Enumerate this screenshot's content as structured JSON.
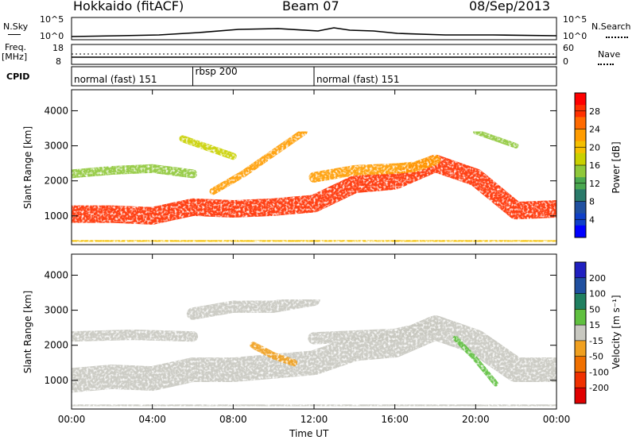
{
  "header": {
    "title_left": "Hokkaido (fitACF)",
    "title_center": "Beam 07",
    "title_right": "08/Sep/2013"
  },
  "strip": {
    "nsky_label": "N.Sky",
    "nsearch_label": "N.Search",
    "freq_label": "Freq.",
    "mhz_label": "[MHz]",
    "nave_label": "Nave",
    "cpid_label": "CPID",
    "nsky_ticks": [
      "10^5",
      "10^0"
    ],
    "nsearch_ticks": [
      "10^5",
      "10^0"
    ],
    "freq_ticks": [
      "18",
      "8"
    ],
    "nave_ticks": [
      "60",
      "0"
    ],
    "cpid_segments": [
      {
        "label": "normal (fast) 151",
        "start": 0,
        "end": 6
      },
      {
        "label": "rbsp 200",
        "start": 6,
        "end": 12
      },
      {
        "label": "normal (fast) 151",
        "start": 12,
        "end": 24
      }
    ]
  },
  "colorbars": {
    "power": {
      "title": "Power [dB]",
      "ticks": [
        "28",
        "24",
        "20",
        "16",
        "12",
        "8",
        "4"
      ],
      "colors": [
        "#ff0000",
        "#ff3000",
        "#ff6a00",
        "#ff9c00",
        "#f5c000",
        "#c9d000",
        "#8fc83a",
        "#4aa850",
        "#2a7a6a",
        "#2050a0",
        "#1040c8",
        "#0000ff"
      ]
    },
    "velocity": {
      "title": "Velocity [m s⁻¹]",
      "ticks": [
        "200",
        "100",
        "50",
        "15",
        "-15",
        "-50",
        "-100",
        "-200"
      ],
      "colors": [
        "#2020c0",
        "#2050a0",
        "#208060",
        "#60c040",
        "#c8c8c0",
        "#f0a020",
        "#f07000",
        "#f03000",
        "#e00000"
      ]
    }
  },
  "chart_data": [
    {
      "type": "heatmap",
      "name": "power",
      "ylabel": "Slant Range [km]",
      "xlabel": "",
      "x_ticks": [
        "00:00",
        "04:00",
        "08:00",
        "12:00",
        "16:00",
        "20:00",
        "00:00"
      ],
      "y_ticks": [
        1000,
        2000,
        3000,
        4000
      ],
      "xlim": [
        0,
        24
      ],
      "ylim": [
        180,
        4600
      ],
      "color_range": [
        0,
        32
      ],
      "bands": [
        {
          "points": [
            [
              0,
              1050
            ],
            [
              2,
              1050
            ],
            [
              4,
              1000
            ],
            [
              6,
              1250
            ],
            [
              8,
              1200
            ],
            [
              10,
              1250
            ],
            [
              12,
              1350
            ],
            [
              14,
              1900
            ],
            [
              16,
              2000
            ],
            [
              18,
              2500
            ],
            [
              20,
              2100
            ],
            [
              22,
              1150
            ],
            [
              24,
              1200
            ]
          ],
          "width": 500,
          "value": 28
        },
        {
          "points": [
            [
              0,
              2200
            ],
            [
              2,
              2300
            ],
            [
              4,
              2350
            ],
            [
              6,
              2200
            ]
          ],
          "width": 250,
          "value": 16
        },
        {
          "points": [
            [
              5.5,
              3200
            ],
            [
              6.5,
              3000
            ],
            [
              8,
              2700
            ]
          ],
          "width": 200,
          "value": 18
        },
        {
          "points": [
            [
              7,
              1700
            ],
            [
              8.5,
              2200
            ],
            [
              10,
              2800
            ],
            [
              11.5,
              3400
            ]
          ],
          "width": 200,
          "value": 24
        },
        {
          "points": [
            [
              12,
              2100
            ],
            [
              14,
              2300
            ],
            [
              16,
              2350
            ],
            [
              17,
              2400
            ],
            [
              18,
              2600
            ]
          ],
          "width": 300,
          "value": 22
        },
        {
          "points": [
            [
              20,
              3400
            ],
            [
              22,
              3000
            ]
          ],
          "width": 150,
          "value": 16
        },
        {
          "points": [
            [
              0,
              260
            ],
            [
              24,
              260
            ]
          ],
          "width": 100,
          "value": 20
        }
      ]
    },
    {
      "type": "heatmap",
      "name": "velocity",
      "ylabel": "Slant Range [km]",
      "xlabel": "Time UT",
      "x_ticks": [
        "00:00",
        "04:00",
        "08:00",
        "12:00",
        "16:00",
        "20:00",
        "00:00"
      ],
      "y_ticks": [
        1000,
        2000,
        3000,
        4000
      ],
      "xlim": [
        0,
        24
      ],
      "ylim": [
        180,
        4600
      ],
      "color_range": [
        -250,
        250
      ],
      "bands": [
        {
          "points": [
            [
              0,
              1000
            ],
            [
              2,
              1100
            ],
            [
              4,
              1050
            ],
            [
              6,
              1300
            ],
            [
              8,
              1300
            ],
            [
              10,
              1400
            ],
            [
              12,
              1500
            ],
            [
              14,
              1900
            ],
            [
              16,
              2000
            ],
            [
              18,
              2500
            ],
            [
              20,
              2100
            ],
            [
              22,
              1300
            ],
            [
              24,
              1300
            ]
          ],
          "width": 700,
          "value": 0
        },
        {
          "points": [
            [
              0,
              2250
            ],
            [
              3,
              2300
            ],
            [
              6,
              2250
            ]
          ],
          "width": 300,
          "value": 0
        },
        {
          "points": [
            [
              6,
              2900
            ],
            [
              8,
              3100
            ],
            [
              10,
              3100
            ],
            [
              12,
              3300
            ]
          ],
          "width": 350,
          "value": 0
        },
        {
          "points": [
            [
              12,
              2200
            ],
            [
              16,
              2300
            ],
            [
              18,
              2550
            ]
          ],
          "width": 350,
          "value": 0
        },
        {
          "points": [
            [
              19,
              2200
            ],
            [
              20,
              1600
            ],
            [
              21,
              900
            ]
          ],
          "width": 150,
          "value": 30
        },
        {
          "points": [
            [
              9,
              2000
            ],
            [
              10,
              1700
            ],
            [
              11,
              1500
            ]
          ],
          "width": 200,
          "value": -50
        },
        {
          "points": [
            [
              0,
              260
            ],
            [
              24,
              260
            ]
          ],
          "width": 100,
          "value": 0
        }
      ]
    }
  ]
}
